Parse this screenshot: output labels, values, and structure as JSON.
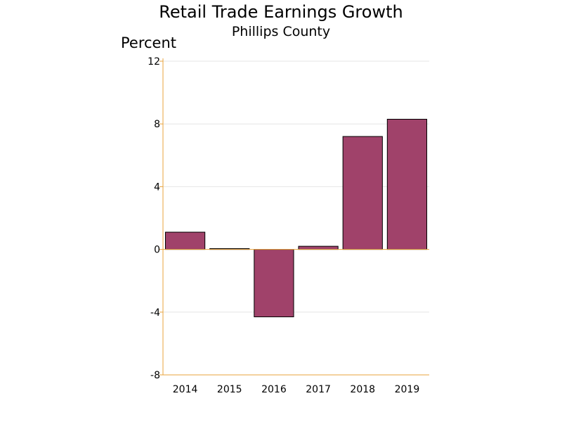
{
  "chart_data": {
    "type": "bar",
    "title": "Retail Trade Earnings Growth",
    "subtitle": "Phillips County",
    "ylabel": "Percent",
    "xlabel": "",
    "categories": [
      "2014",
      "2015",
      "2016",
      "2017",
      "2018",
      "2019"
    ],
    "values": [
      1.1,
      0.05,
      -4.3,
      0.2,
      7.2,
      8.3
    ],
    "ylim": [
      -8,
      12
    ],
    "yticks": [
      12,
      8,
      4,
      0,
      -4,
      -8
    ],
    "ytick_labels": [
      "12",
      "8",
      "4",
      "0",
      "-4",
      "-8"
    ],
    "grid": true,
    "colors": {
      "bar_fill": "#a0426a",
      "bar_stroke": "#000000",
      "axis": "#e8a33d",
      "grid": "#e6e6e6"
    }
  }
}
